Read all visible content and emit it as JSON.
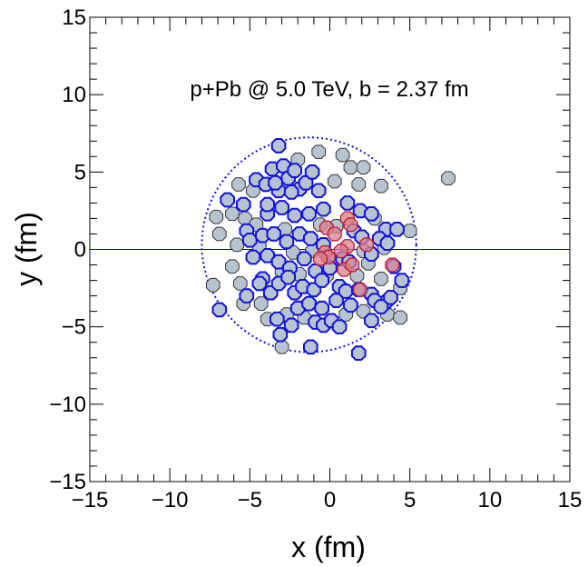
{
  "chart_data": {
    "type": "scatter",
    "title": "",
    "annotation": "p+Pb @ 5.0 TeV, b = 2.37 fm",
    "xlabel": "x (fm)",
    "ylabel": "y (fm)",
    "xlim": [
      -15,
      15
    ],
    "ylim": [
      -15,
      15
    ],
    "xticks": [
      -15,
      -10,
      -5,
      0,
      5,
      10,
      15
    ],
    "yticks": [
      -15,
      -10,
      -5,
      0,
      5,
      10,
      15
    ],
    "xtick_labels": [
      "−15",
      "−10",
      "−5",
      "0",
      "5",
      "10",
      "15"
    ],
    "ytick_labels": [
      "−15",
      "−10",
      "−5",
      "0",
      "5",
      "10",
      "15"
    ],
    "grid": false,
    "colors": {
      "nucleon_fill": "#b7c4d0",
      "nucleon_edge": "#1010e0",
      "proton_fill": "#d88090",
      "proton_edge": "#c01828",
      "outline": "#1010e0",
      "beam_line": "#0000cc"
    },
    "nucleus_outline": {
      "center": [
        -1.3,
        0.3
      ],
      "radius": 6.7
    },
    "nucleon_radius_fm": 0.45,
    "series": [
      {
        "role": "Pb participants",
        "style": "blue-edge",
        "points": [
          [
            -3.2,
            6.7
          ],
          [
            -4.6,
            4.5
          ],
          [
            -4.0,
            4.2
          ],
          [
            -3.6,
            5.2
          ],
          [
            -3.2,
            3.8
          ],
          [
            -2.9,
            5.4
          ],
          [
            -2.6,
            4.6
          ],
          [
            -2.2,
            5.1
          ],
          [
            -1.9,
            3.9
          ],
          [
            -1.5,
            4.3
          ],
          [
            -1.1,
            5.0
          ],
          [
            -0.7,
            3.8
          ],
          [
            -3.4,
            4.3
          ],
          [
            -2.4,
            3.7
          ],
          [
            -6.4,
            3.2
          ],
          [
            -5.4,
            2.9
          ],
          [
            -3.9,
            2.3
          ],
          [
            -3.0,
            2.7
          ],
          [
            -2.2,
            2.2
          ],
          [
            -1.3,
            2.3
          ],
          [
            -0.4,
            2.6
          ],
          [
            1.1,
            3.0
          ],
          [
            1.9,
            2.5
          ],
          [
            2.6,
            2.3
          ],
          [
            3.5,
            1.3
          ],
          [
            4.2,
            1.3
          ],
          [
            -5.2,
            1.2
          ],
          [
            -5.0,
            0.6
          ],
          [
            -4.2,
            0.9
          ],
          [
            -3.5,
            1.0
          ],
          [
            -2.7,
            0.5
          ],
          [
            -1.9,
            1.0
          ],
          [
            -1.2,
            0.7
          ],
          [
            -0.4,
            0.3
          ],
          [
            1.5,
            1.2
          ],
          [
            2.0,
            0.8
          ],
          [
            3.1,
            0.7
          ],
          [
            3.6,
            0.4
          ],
          [
            -4.8,
            -0.5
          ],
          [
            -3.9,
            -0.4
          ],
          [
            -3.2,
            -0.8
          ],
          [
            -2.5,
            -1.2
          ],
          [
            -1.6,
            -0.6
          ],
          [
            -0.9,
            -1.4
          ],
          [
            0.0,
            -1.2
          ],
          [
            0.8,
            -0.6
          ],
          [
            1.2,
            -0.8
          ],
          [
            2.6,
            -0.3
          ],
          [
            4.0,
            -1.1
          ],
          [
            4.5,
            -2.0
          ],
          [
            -4.2,
            -1.9
          ],
          [
            -3.7,
            -2.8
          ],
          [
            -3.2,
            -2.2
          ],
          [
            -2.6,
            -1.8
          ],
          [
            -2.2,
            -2.8
          ],
          [
            -1.7,
            -2.4
          ],
          [
            -1.0,
            -2.6
          ],
          [
            -0.5,
            -2.0
          ],
          [
            0.6,
            -2.4
          ],
          [
            1.0,
            -2.7
          ],
          [
            1.8,
            -2.6
          ],
          [
            2.6,
            -2.9
          ],
          [
            3.5,
            -3.4
          ],
          [
            -2.0,
            -3.8
          ],
          [
            -1.3,
            -3.5
          ],
          [
            -0.5,
            -3.8
          ],
          [
            0.4,
            -3.3
          ],
          [
            1.3,
            -3.6
          ],
          [
            2.8,
            -3.3
          ],
          [
            3.2,
            -3.7
          ],
          [
            3.8,
            -3.1
          ],
          [
            -3.3,
            -4.5
          ],
          [
            -2.4,
            -4.9
          ],
          [
            -0.9,
            -4.7
          ],
          [
            -0.4,
            -4.9
          ],
          [
            0.1,
            -4.6
          ],
          [
            0.6,
            -5.0
          ],
          [
            2.6,
            -4.6
          ],
          [
            -6.9,
            -3.9
          ],
          [
            -3.1,
            -5.5
          ],
          [
            -1.2,
            -6.3
          ],
          [
            1.8,
            -6.7
          ],
          [
            -5.2,
            -3.0
          ],
          [
            -4.4,
            -2.2
          ],
          [
            -3.9,
            2.9
          ]
        ]
      },
      {
        "role": "Pb spectators",
        "style": "gray-edge",
        "points": [
          [
            -0.7,
            6.3
          ],
          [
            0.8,
            6.1
          ],
          [
            -2.0,
            5.8
          ],
          [
            1.3,
            5.3
          ],
          [
            2.1,
            5.3
          ],
          [
            0.3,
            4.4
          ],
          [
            1.8,
            4.2
          ],
          [
            3.2,
            4.1
          ],
          [
            -5.7,
            4.2
          ],
          [
            -4.8,
            3.8
          ],
          [
            -7.1,
            2.1
          ],
          [
            -6.1,
            2.3
          ],
          [
            -5.3,
            2.0
          ],
          [
            -4.6,
            1.6
          ],
          [
            -2.8,
            1.3
          ],
          [
            -0.6,
            1.6
          ],
          [
            0.4,
            1.5
          ],
          [
            2.8,
            2.0
          ],
          [
            5.0,
            1.2
          ],
          [
            -6.9,
            1.0
          ],
          [
            -5.8,
            0.3
          ],
          [
            -4.4,
            0.2
          ],
          [
            -2.3,
            -0.2
          ],
          [
            -1.1,
            -0.1
          ],
          [
            0.2,
            -0.7
          ],
          [
            2.1,
            -0.1
          ],
          [
            3.4,
            0.1
          ],
          [
            2.4,
            -0.9
          ],
          [
            -7.3,
            -2.3
          ],
          [
            -6.1,
            -1.1
          ],
          [
            -5.6,
            -2.2
          ],
          [
            -3.0,
            -1.4
          ],
          [
            -1.9,
            -1.6
          ],
          [
            -0.2,
            -1.7
          ],
          [
            1.7,
            -1.7
          ],
          [
            3.2,
            -1.9
          ],
          [
            4.4,
            -2.5
          ],
          [
            -5.4,
            -3.5
          ],
          [
            -4.3,
            -3.5
          ],
          [
            -3.9,
            -4.5
          ],
          [
            -2.7,
            -4.2
          ],
          [
            -1.6,
            -4.4
          ],
          [
            1.0,
            -4.2
          ],
          [
            2.1,
            -4.0
          ],
          [
            3.6,
            -4.2
          ],
          [
            4.4,
            -4.4
          ],
          [
            -3.0,
            -6.3
          ],
          [
            7.4,
            4.6
          ]
        ]
      },
      {
        "role": "p participants",
        "style": "red",
        "points": [
          [
            -0.2,
            1.4
          ],
          [
            0.3,
            1.0
          ],
          [
            1.1,
            2.0
          ],
          [
            1.3,
            1.6
          ],
          [
            2.3,
            0.3
          ],
          [
            1.1,
            0.2
          ],
          [
            0.7,
            -0.1
          ],
          [
            -0.3,
            -0.2
          ],
          [
            -0.1,
            -0.5
          ],
          [
            -0.6,
            -0.6
          ],
          [
            0.9,
            -1.3
          ],
          [
            1.4,
            -1.0
          ],
          [
            3.9,
            -1.0
          ],
          [
            1.9,
            -2.6
          ]
        ]
      }
    ]
  }
}
